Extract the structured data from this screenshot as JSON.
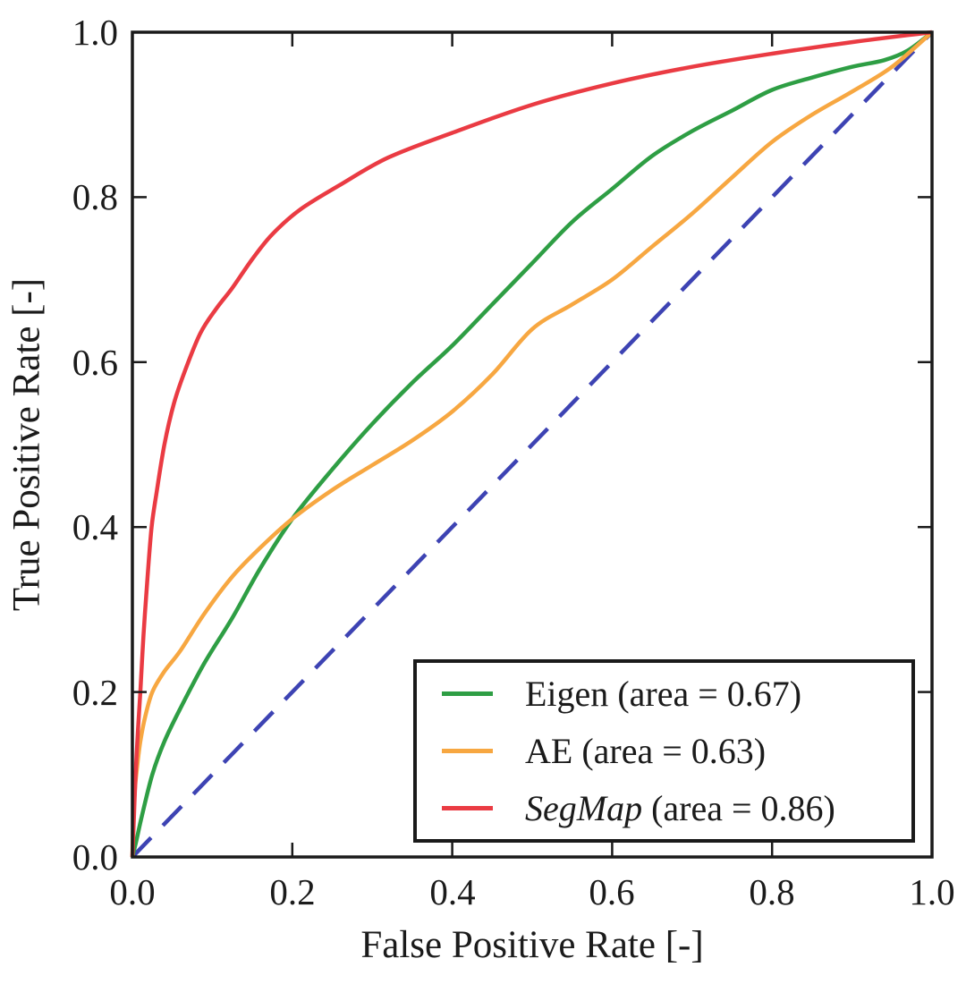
{
  "figure": {
    "background": "#ffffff",
    "axis_color": "#1a1a1a",
    "text_color": "#1b1b1b"
  },
  "chart_data": {
    "type": "line",
    "title": "",
    "xlabel": "False Positive Rate [-]",
    "ylabel": "True Positive Rate [-]",
    "xlim": [
      0.0,
      1.0
    ],
    "ylim": [
      0.0,
      1.0
    ],
    "grid": false,
    "legend_position": "lower right",
    "x_ticks": [
      0.0,
      0.2,
      0.4,
      0.6,
      0.8,
      1.0
    ],
    "y_ticks": [
      0.0,
      0.2,
      0.4,
      0.6,
      0.8,
      1.0
    ],
    "x_tick_labels": [
      "0.0",
      "0.2",
      "0.4",
      "0.6",
      "0.8",
      "1.0"
    ],
    "y_tick_labels": [
      "0.0",
      "0.2",
      "0.4",
      "0.6",
      "0.8",
      "1.0"
    ],
    "series": [
      {
        "name": "Eigen",
        "area": 0.67,
        "legend_name": "Eigen",
        "legend_rest": " (area = 0.67)",
        "color": "#2e9e44",
        "style": "solid",
        "z": 1,
        "show_in_legend": true,
        "points": [
          [
            0,
            0
          ],
          [
            0.005,
            0.02
          ],
          [
            0.012,
            0.05
          ],
          [
            0.025,
            0.1
          ],
          [
            0.04,
            0.14
          ],
          [
            0.06,
            0.18
          ],
          [
            0.09,
            0.235
          ],
          [
            0.125,
            0.29
          ],
          [
            0.16,
            0.35
          ],
          [
            0.2,
            0.41
          ],
          [
            0.25,
            0.47
          ],
          [
            0.3,
            0.525
          ],
          [
            0.35,
            0.575
          ],
          [
            0.4,
            0.62
          ],
          [
            0.45,
            0.67
          ],
          [
            0.5,
            0.72
          ],
          [
            0.55,
            0.77
          ],
          [
            0.6,
            0.81
          ],
          [
            0.65,
            0.85
          ],
          [
            0.7,
            0.88
          ],
          [
            0.75,
            0.905
          ],
          [
            0.8,
            0.93
          ],
          [
            0.85,
            0.945
          ],
          [
            0.9,
            0.958
          ],
          [
            0.94,
            0.966
          ],
          [
            0.97,
            0.978
          ],
          [
            1,
            1
          ]
        ]
      },
      {
        "name": "AE",
        "area": 0.63,
        "legend_name": "AE",
        "legend_rest": " (area = 0.63)",
        "color": "#f7a741",
        "style": "solid",
        "z": 2,
        "show_in_legend": true,
        "points": [
          [
            0,
            0
          ],
          [
            0.001,
            0.04
          ],
          [
            0.003,
            0.08
          ],
          [
            0.006,
            0.11
          ],
          [
            0.01,
            0.14
          ],
          [
            0.016,
            0.17
          ],
          [
            0.025,
            0.2
          ],
          [
            0.04,
            0.225
          ],
          [
            0.06,
            0.25
          ],
          [
            0.09,
            0.295
          ],
          [
            0.125,
            0.34
          ],
          [
            0.16,
            0.375
          ],
          [
            0.2,
            0.41
          ],
          [
            0.25,
            0.445
          ],
          [
            0.3,
            0.475
          ],
          [
            0.35,
            0.505
          ],
          [
            0.4,
            0.54
          ],
          [
            0.45,
            0.585
          ],
          [
            0.5,
            0.64
          ],
          [
            0.55,
            0.67
          ],
          [
            0.6,
            0.7
          ],
          [
            0.65,
            0.74
          ],
          [
            0.7,
            0.78
          ],
          [
            0.75,
            0.824
          ],
          [
            0.8,
            0.867
          ],
          [
            0.85,
            0.9
          ],
          [
            0.9,
            0.928
          ],
          [
            0.95,
            0.958
          ],
          [
            1,
            1
          ]
        ]
      },
      {
        "name": "SegMap",
        "area": 0.86,
        "legend_name": "SegMap",
        "legend_rest": " (area = 0.86)",
        "color": "#ea3b43",
        "style": "solid",
        "z": 3,
        "show_in_legend": true,
        "points": [
          [
            0,
            0
          ],
          [
            0.002,
            0.05
          ],
          [
            0.004,
            0.1
          ],
          [
            0.007,
            0.155
          ],
          [
            0.01,
            0.2
          ],
          [
            0.014,
            0.27
          ],
          [
            0.019,
            0.34
          ],
          [
            0.024,
            0.4
          ],
          [
            0.03,
            0.44
          ],
          [
            0.04,
            0.5
          ],
          [
            0.052,
            0.55
          ],
          [
            0.066,
            0.59
          ],
          [
            0.085,
            0.635
          ],
          [
            0.105,
            0.665
          ],
          [
            0.125,
            0.69
          ],
          [
            0.15,
            0.725
          ],
          [
            0.175,
            0.755
          ],
          [
            0.21,
            0.785
          ],
          [
            0.26,
            0.815
          ],
          [
            0.32,
            0.848
          ],
          [
            0.4,
            0.878
          ],
          [
            0.5,
            0.912
          ],
          [
            0.6,
            0.938
          ],
          [
            0.7,
            0.958
          ],
          [
            0.8,
            0.974
          ],
          [
            0.9,
            0.988
          ],
          [
            1,
            1
          ]
        ]
      },
      {
        "name": "chance",
        "legend_name": "",
        "legend_rest": "",
        "color": "#3d43b3",
        "style": "dashed",
        "z": 0,
        "show_in_legend": false,
        "points": [
          [
            0,
            0
          ],
          [
            1,
            1
          ]
        ]
      }
    ]
  }
}
